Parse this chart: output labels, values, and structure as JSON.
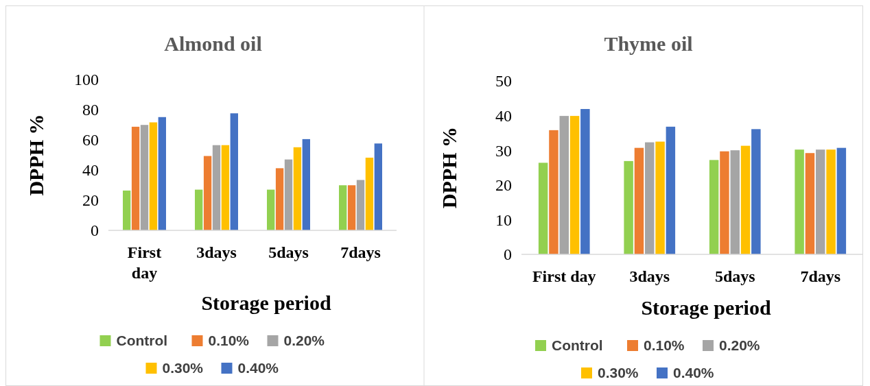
{
  "chart_data": [
    {
      "type": "bar",
      "title": "Almond oil",
      "xlabel": "Storage period",
      "ylabel": "DPPH %",
      "categories": [
        "First day",
        "3days",
        "5days",
        "7days"
      ],
      "ylim": [
        0,
        100
      ],
      "yticks": [
        0,
        20,
        40,
        60,
        80,
        100
      ],
      "grid": false,
      "legend": "bottom",
      "series": [
        {
          "name": "Control",
          "color": "#92d050",
          "values": [
            26.4,
            27,
            27,
            29.9
          ]
        },
        {
          "name": "0.10%",
          "color": "#ed7d31",
          "values": [
            68.7,
            49.3,
            41.2,
            29.9
          ]
        },
        {
          "name": "0.20%",
          "color": "#a5a5a5",
          "values": [
            69.9,
            56.5,
            47,
            33.4
          ]
        },
        {
          "name": "0.30%",
          "color": "#ffc000",
          "values": [
            71.6,
            56.5,
            55.1,
            48.2
          ]
        },
        {
          "name": "0.40%",
          "color": "#4472c4",
          "values": [
            75.1,
            77.6,
            60.5,
            57.6
          ]
        }
      ]
    },
    {
      "type": "bar",
      "title": "Thyme oil",
      "xlabel": "Storage period",
      "ylabel": "DPPH %",
      "categories": [
        "First day",
        "3days",
        "5days",
        "7days"
      ],
      "ylim": [
        0,
        50
      ],
      "yticks": [
        0,
        10,
        20,
        30,
        40,
        50
      ],
      "grid": false,
      "legend": "bottom",
      "series": [
        {
          "name": "Control",
          "color": "#92d050",
          "values": [
            26.4,
            26.9,
            27.2,
            30.2
          ]
        },
        {
          "name": "0.10%",
          "color": "#ed7d31",
          "values": [
            35.8,
            30.7,
            29.7,
            29.2
          ]
        },
        {
          "name": "0.20%",
          "color": "#a5a5a5",
          "values": [
            39.9,
            32.3,
            30,
            30.2
          ]
        },
        {
          "name": "0.30%",
          "color": "#ffc000",
          "values": [
            39.9,
            32.5,
            31.3,
            30.2
          ]
        },
        {
          "name": "0.40%",
          "color": "#4472c4",
          "values": [
            41.9,
            36.8,
            36.1,
            30.7
          ]
        }
      ]
    }
  ]
}
